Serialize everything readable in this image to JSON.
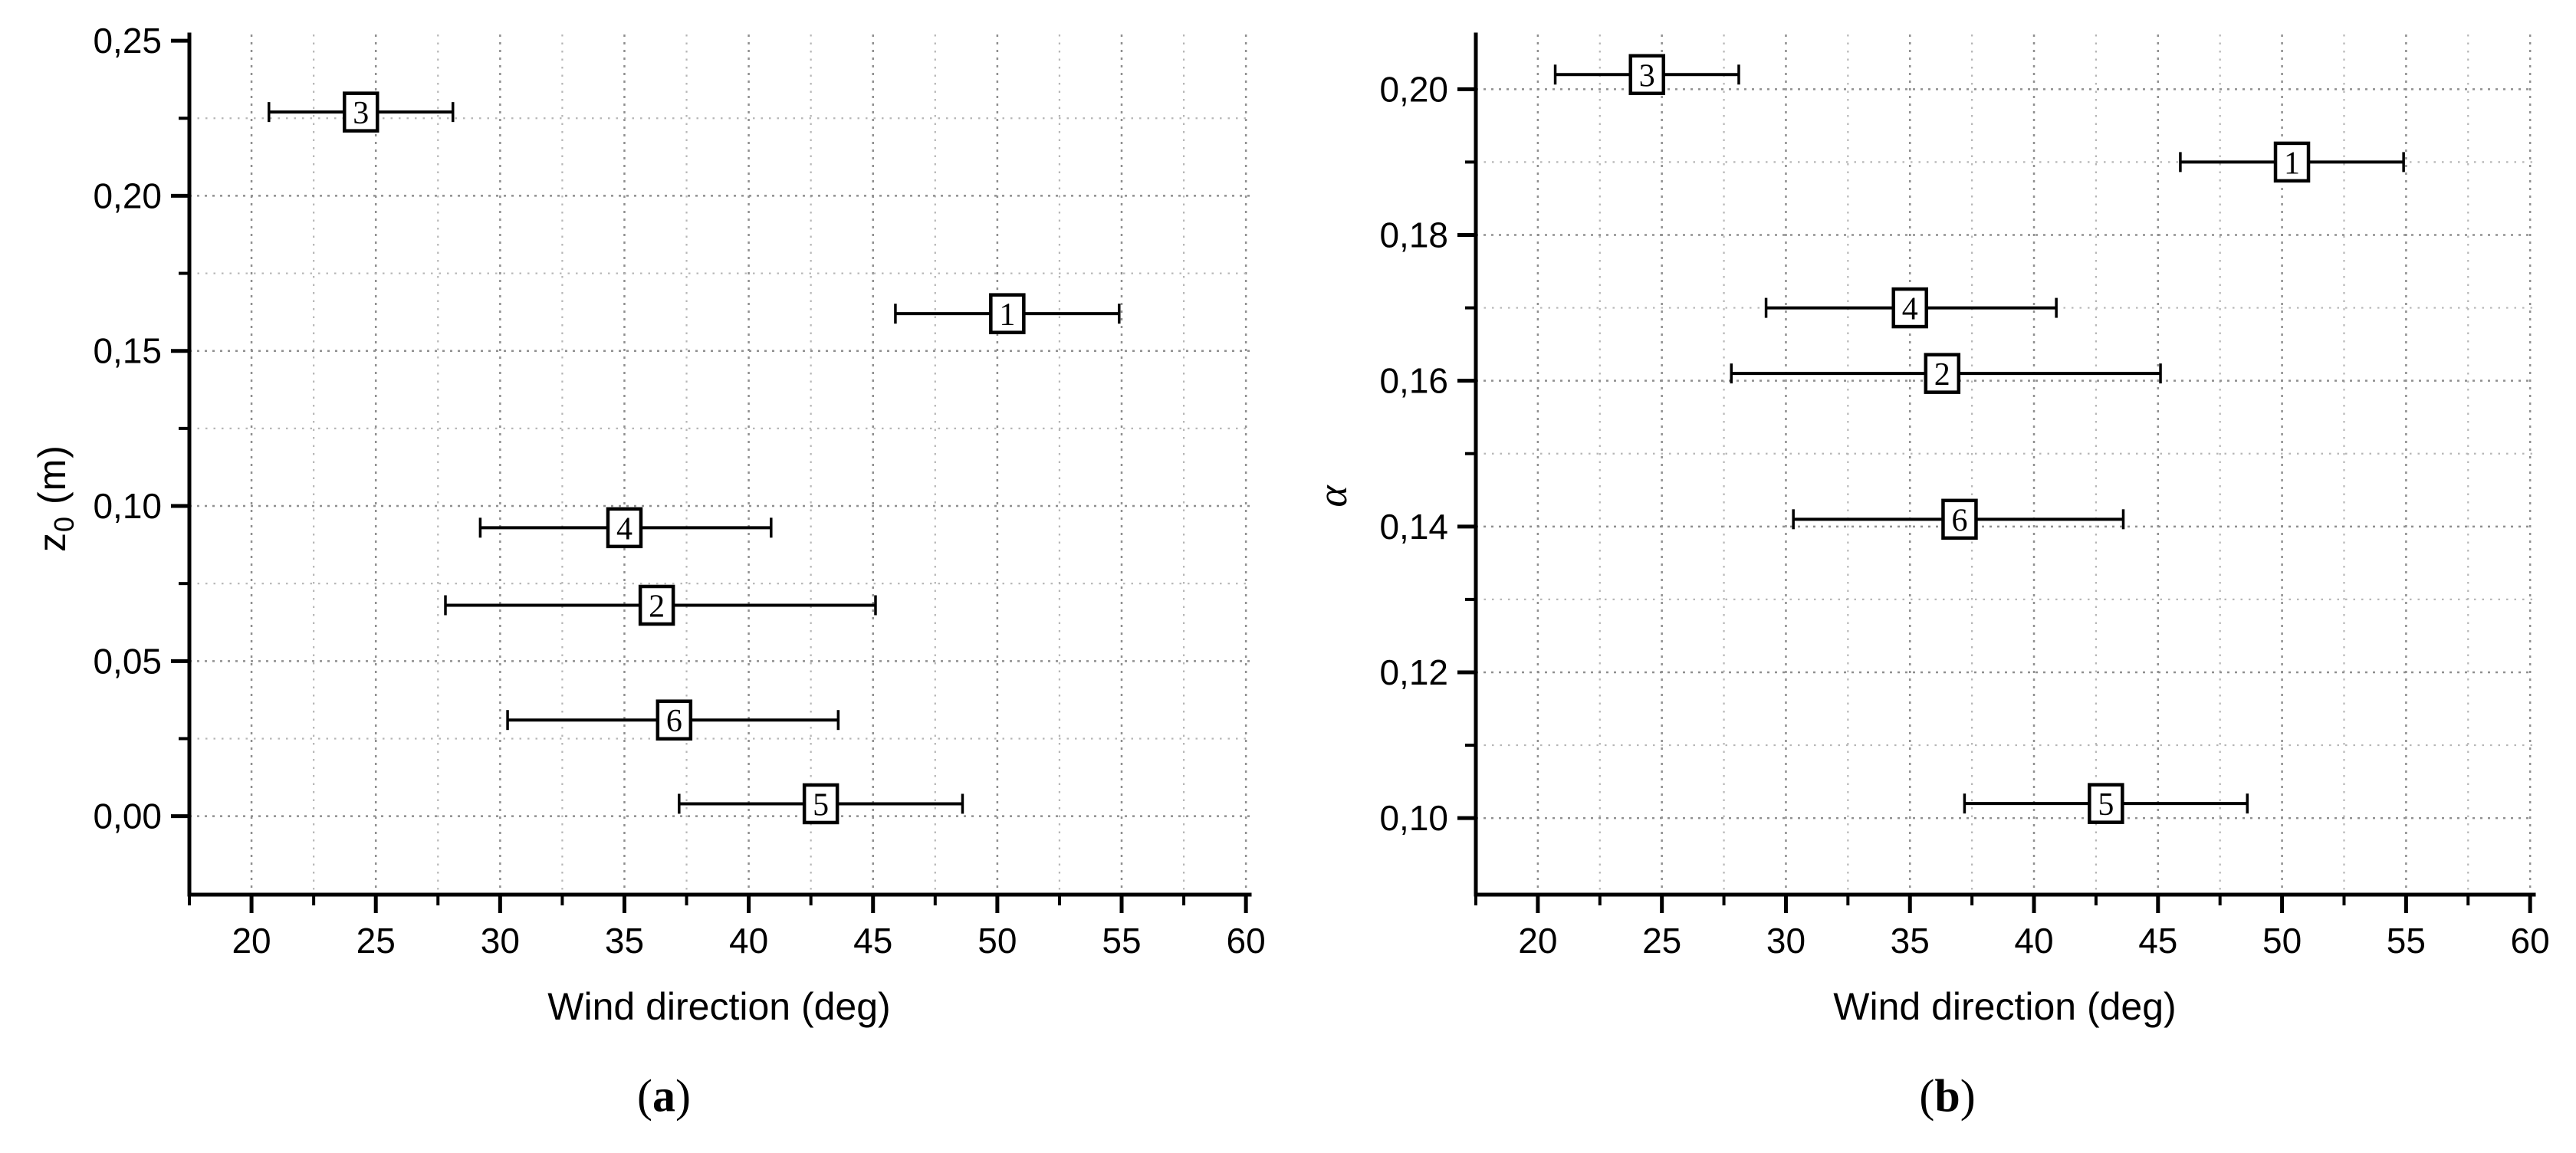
{
  "figure": {
    "background": "#ffffff",
    "colors": {
      "axis": "#000000",
      "grid_major": "#8f8f8f",
      "grid_minor": "#b6b6b6",
      "marker_fill": "#ffffff",
      "marker_border": "#000000",
      "text": "#000000"
    }
  },
  "chart_data": [
    {
      "id": "a",
      "type": "scatter",
      "caption": {
        "open": "(",
        "letter": "a",
        "close": ")"
      },
      "xlabel": "Wind direction (deg)",
      "ylabel": {
        "main": "z",
        "sub": "0",
        "suffix": " (m)"
      },
      "xlim": [
        17.5,
        60.15
      ],
      "ylim": [
        -0.0253,
        0.252
      ],
      "x_ticks": {
        "major": [
          20,
          25,
          30,
          35,
          40,
          45,
          50,
          55,
          60
        ],
        "major_labels": [
          "20",
          "25",
          "30",
          "35",
          "40",
          "45",
          "50",
          "55",
          "60"
        ],
        "minor": [
          17.5,
          22.5,
          27.5,
          32.5,
          37.5,
          42.5,
          47.5,
          52.5,
          57.5
        ]
      },
      "y_ticks": {
        "major": [
          0.0,
          0.05,
          0.1,
          0.15,
          0.2,
          0.25
        ],
        "major_labels": [
          "0,00",
          "0,05",
          "0,10",
          "0,15",
          "0,20",
          "0,25"
        ],
        "minor": [
          0.025,
          0.075,
          0.125,
          0.175,
          0.225
        ]
      },
      "grid_x": [
        20,
        22.5,
        25,
        27.5,
        30,
        32.5,
        35,
        37.5,
        40,
        42.5,
        45,
        47.5,
        50,
        52.5,
        55,
        57.5,
        60
      ],
      "grid_y": [
        0.0,
        0.025,
        0.05,
        0.075,
        0.1,
        0.125,
        0.15,
        0.175,
        0.2,
        0.225
      ],
      "points": [
        {
          "label": "1",
          "x": 50.4,
          "x_low": 45.9,
          "x_high": 54.9,
          "y": 0.162
        },
        {
          "label": "2",
          "x": 36.3,
          "x_low": 27.8,
          "x_high": 45.1,
          "y": 0.068
        },
        {
          "label": "3",
          "x": 24.4,
          "x_low": 20.7,
          "x_high": 28.1,
          "y": 0.227
        },
        {
          "label": "4",
          "x": 35.0,
          "x_low": 29.2,
          "x_high": 40.9,
          "y": 0.093
        },
        {
          "label": "5",
          "x": 42.9,
          "x_low": 37.2,
          "x_high": 48.6,
          "y": 0.004
        },
        {
          "label": "6",
          "x": 37.0,
          "x_low": 30.3,
          "x_high": 43.6,
          "y": 0.031
        }
      ]
    },
    {
      "id": "b",
      "type": "scatter",
      "caption": {
        "open": "(",
        "letter": "b",
        "close": ")"
      },
      "xlabel": "Wind direction (deg)",
      "ylabel": {
        "main": "α",
        "sub": "",
        "suffix": ""
      },
      "xlim": [
        17.5,
        60.15
      ],
      "ylim": [
        0.0895,
        0.2075
      ],
      "x_ticks": {
        "major": [
          20,
          25,
          30,
          35,
          40,
          45,
          50,
          55,
          60
        ],
        "major_labels": [
          "20",
          "25",
          "30",
          "35",
          "40",
          "45",
          "50",
          "55",
          "60"
        ],
        "minor": [
          17.5,
          22.5,
          27.5,
          32.5,
          37.5,
          42.5,
          47.5,
          52.5,
          57.5
        ]
      },
      "y_ticks": {
        "major": [
          0.1,
          0.12,
          0.14,
          0.16,
          0.18,
          0.2
        ],
        "major_labels": [
          "0,10",
          "0,12",
          "0,14",
          "0,16",
          "0,18",
          "0,20"
        ],
        "minor": [
          0.11,
          0.13,
          0.15,
          0.17,
          0.19
        ]
      },
      "grid_x": [
        20,
        22.5,
        25,
        27.5,
        30,
        32.5,
        35,
        37.5,
        40,
        42.5,
        45,
        47.5,
        50,
        52.5,
        55,
        57.5,
        60
      ],
      "grid_y": [
        0.1,
        0.11,
        0.12,
        0.13,
        0.14,
        0.15,
        0.16,
        0.17,
        0.18,
        0.19,
        0.2
      ],
      "points": [
        {
          "label": "1",
          "x": 50.4,
          "x_low": 45.9,
          "x_high": 54.9,
          "y": 0.19
        },
        {
          "label": "2",
          "x": 36.3,
          "x_low": 27.8,
          "x_high": 45.1,
          "y": 0.161
        },
        {
          "label": "3",
          "x": 24.4,
          "x_low": 20.7,
          "x_high": 28.1,
          "y": 0.202
        },
        {
          "label": "4",
          "x": 35.0,
          "x_low": 29.2,
          "x_high": 40.9,
          "y": 0.17
        },
        {
          "label": "5",
          "x": 42.9,
          "x_low": 37.2,
          "x_high": 48.6,
          "y": 0.102
        },
        {
          "label": "6",
          "x": 37.0,
          "x_low": 30.3,
          "x_high": 43.6,
          "y": 0.141
        }
      ]
    }
  ]
}
